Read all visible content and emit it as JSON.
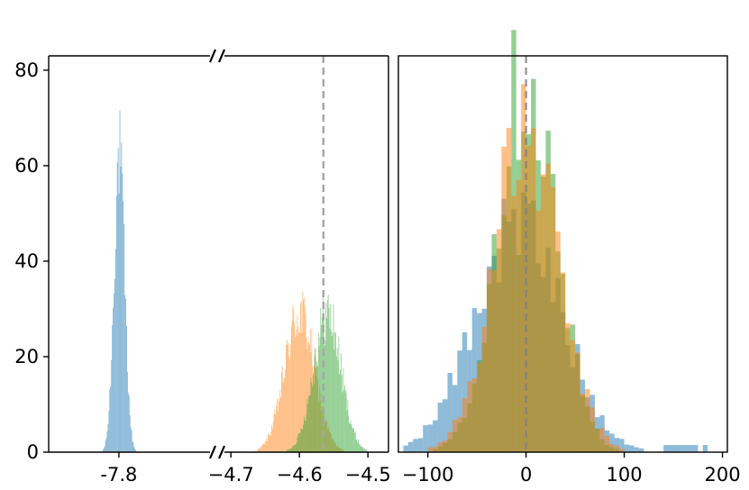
{
  "chart_data": [
    {
      "type": "histogram",
      "panel": "left",
      "broken_x_axis": true,
      "segments": [
        {
          "xlim": [
            -7.9,
            -7.66
          ],
          "xticks": [
            -7.8
          ],
          "xtick_labels": [
            "-7.8"
          ]
        },
        {
          "xlim": [
            -4.72,
            -4.47
          ],
          "xticks": [
            -4.7,
            -4.6,
            -4.5
          ],
          "xtick_labels": [
            "−4.7",
            "−4.6",
            "−4.5"
          ]
        }
      ],
      "ylim": [
        0,
        83
      ],
      "yticks": [
        0,
        20,
        40,
        60,
        80
      ],
      "ytick_labels": [
        "0",
        "20",
        "40",
        "60",
        "80"
      ],
      "reference_line": {
        "x": -4.565,
        "style": "dashed",
        "color": "#a6a6a6"
      },
      "series": [
        {
          "color": "#1f77b4",
          "opacity": 0.5,
          "center": -7.8,
          "sd": 0.0075,
          "peak": 62
        },
        {
          "color": "#ff7f0e",
          "opacity": 0.5,
          "center": -4.6,
          "sd": 0.022,
          "peak": 29
        },
        {
          "color": "#2ca02c",
          "opacity": 0.5,
          "center": -4.56,
          "sd": 0.02,
          "peak": 29
        }
      ]
    },
    {
      "type": "histogram",
      "panel": "right",
      "xlim": [
        -130,
        205
      ],
      "xticks": [
        -100,
        0,
        100,
        200
      ],
      "xtick_labels": [
        "−100",
        "0",
        "100",
        "200"
      ],
      "ylim": [
        0,
        83
      ],
      "reference_line": {
        "x": 0,
        "style": "dashed",
        "color": "#808080"
      },
      "series": [
        {
          "color": "#1f77b4",
          "opacity": 0.5,
          "center": -8,
          "sd": 44,
          "peak": 48
        },
        {
          "color": "#2ca02c",
          "opacity": 0.5,
          "center": 0,
          "sd": 30,
          "peak": 80
        },
        {
          "color": "#ff7f0e",
          "opacity": 0.5,
          "center": 0,
          "sd": 33,
          "peak": 66
        }
      ]
    }
  ]
}
